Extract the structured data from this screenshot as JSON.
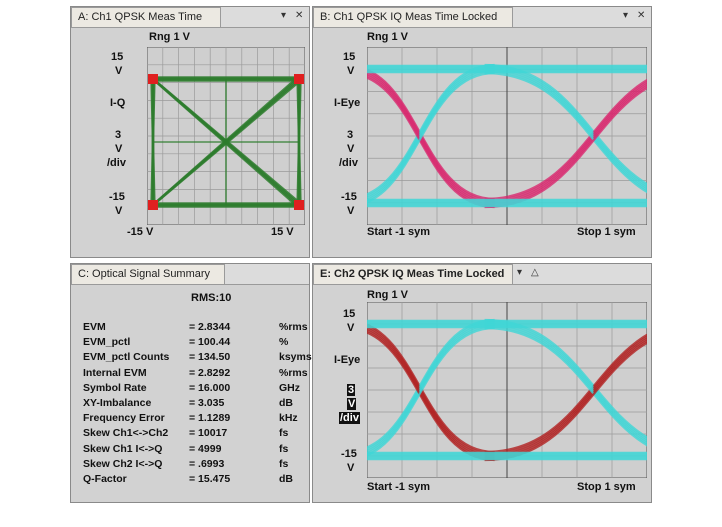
{
  "panes": {
    "a": {
      "title": "A: Ch1 QPSK Meas Time",
      "range": "Rng 1  V",
      "y_labels": [
        "15",
        "V",
        "I-Q",
        "3",
        "V",
        "/div",
        "-15",
        "V"
      ],
      "x_left": "-15  V",
      "x_right": "15  V",
      "colors": {
        "trace": "#2e7d2e",
        "points": "#e02020"
      }
    },
    "b": {
      "title": "B: Ch1 QPSK IQ Meas Time Locked",
      "range": "Rng 1  V",
      "y_labels": [
        "15",
        "V",
        "I-Eye",
        "3",
        "V",
        "/div",
        "-15",
        "V"
      ],
      "x_left": "Start -1  sym",
      "x_right": "Stop 1  sym",
      "colors": {
        "trace_a": "#3fd6d6",
        "trace_b": "#d8286e"
      }
    },
    "c": {
      "title": "C: Optical Signal Summary",
      "rms": "RMS:10",
      "rows": [
        {
          "name": "EVM",
          "value": "= 2.8344",
          "unit": "%rms"
        },
        {
          "name": "EVM_pctl",
          "value": "= 100.44",
          "unit": "%"
        },
        {
          "name": "EVM_pctl Counts",
          "value": "= 134.50",
          "unit": "ksyms"
        },
        {
          "name": "Internal EVM",
          "value": "= 2.8292",
          "unit": "%rms"
        },
        {
          "name": "Symbol Rate",
          "value": "= 16.000",
          "unit": "GHz"
        },
        {
          "name": "XY-Imbalance",
          "value": "= 3.035",
          "unit": "dB"
        },
        {
          "name": "Frequency Error",
          "value": "= 1.1289",
          "unit": "kHz"
        },
        {
          "name": "Skew Ch1<->Ch2",
          "value": "= 10017",
          "unit": "fs"
        },
        {
          "name": "Skew Ch1 I<->Q",
          "value": "= 4999",
          "unit": "fs"
        },
        {
          "name": "Skew Ch2 I<->Q",
          "value": "= .6993",
          "unit": "fs"
        },
        {
          "name": "Q-Factor",
          "value": "= 15.475",
          "unit": "dB"
        }
      ]
    },
    "e": {
      "title": "E: Ch2 QPSK IQ Meas Time Locked",
      "range": "Rng 1  V",
      "y_labels": [
        "15",
        "V",
        "I-Eye",
        "3",
        "V",
        "/div",
        "-15",
        "V"
      ],
      "x_left": "Start -1  sym",
      "x_right": "Stop 1  sym",
      "colors": {
        "trace_a": "#3fd6d6",
        "trace_b": "#b02020"
      }
    }
  }
}
